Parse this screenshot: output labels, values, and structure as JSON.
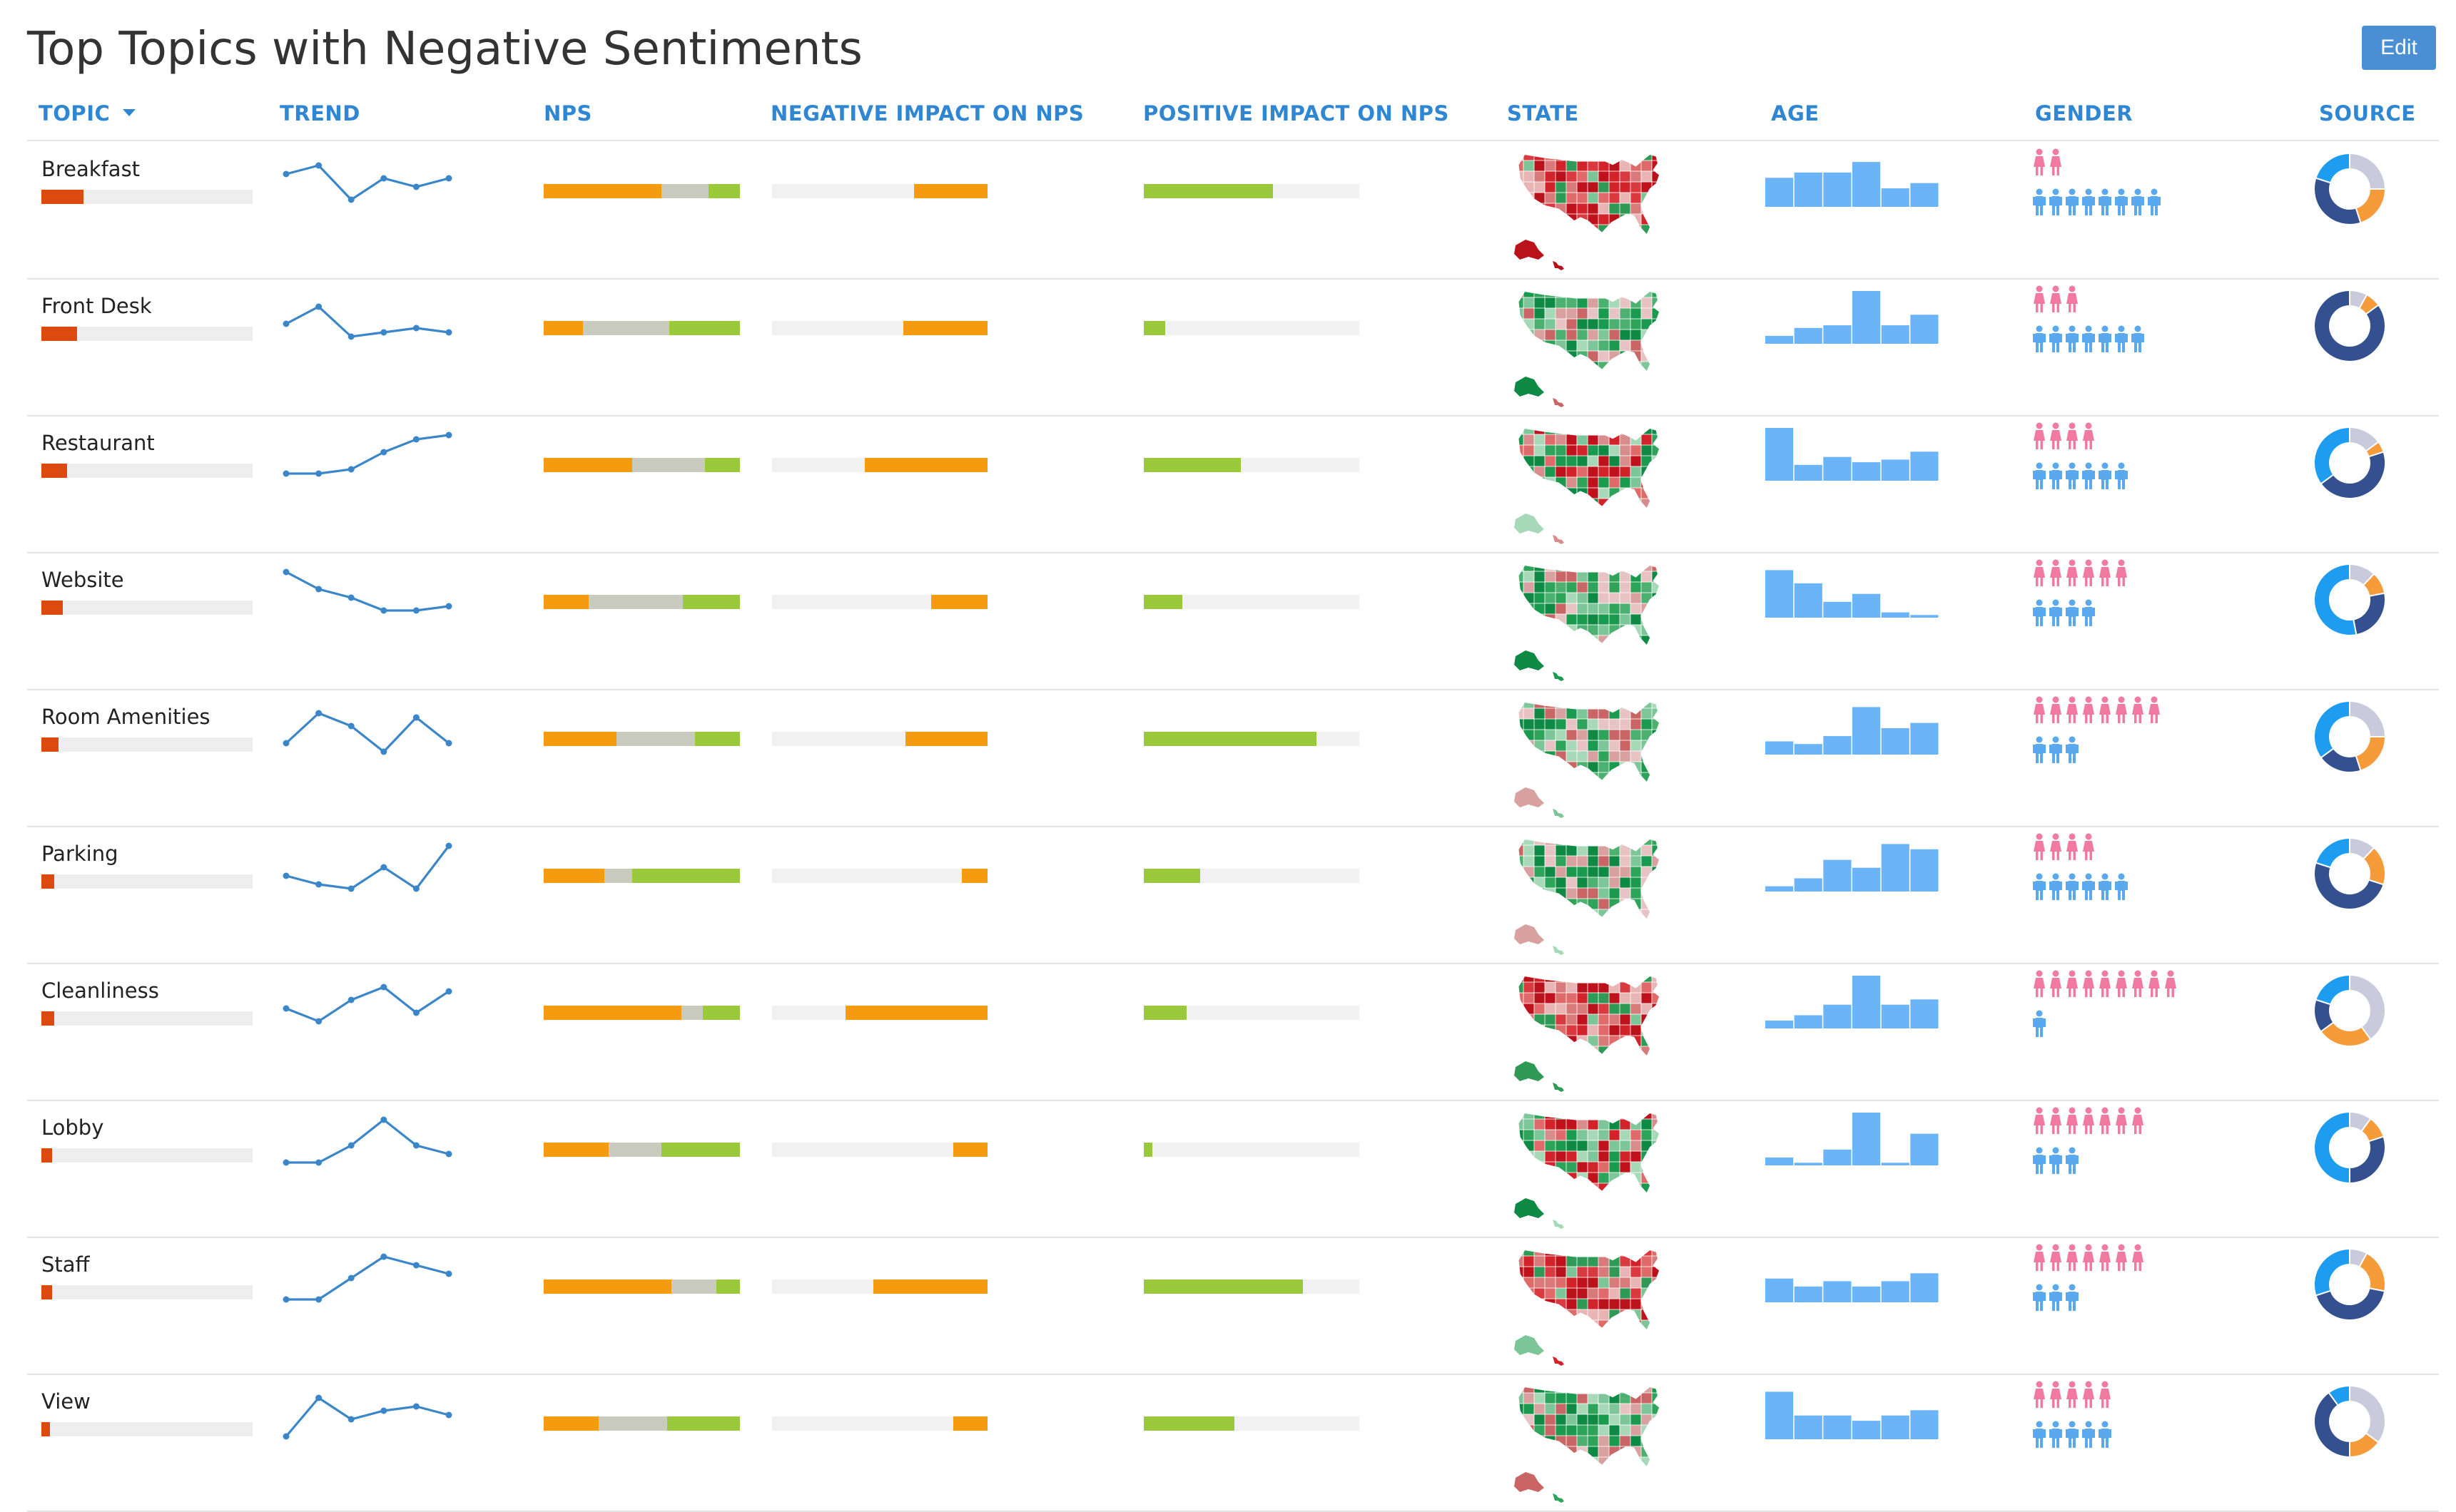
{
  "title": "Top Topics with Negative Sentiments",
  "edit_label": "Edit",
  "columns": {
    "topic": "TOPIC",
    "trend": "TREND",
    "nps": "NPS",
    "negative": "NEGATIVE IMPACT ON NPS",
    "positive": "POSITIVE IMPACT ON NPS",
    "state": "STATE",
    "age": "AGE",
    "gender": "GENDER",
    "source": "SOURCE"
  },
  "icons": {
    "sort": "sort-down-icon",
    "female": "female-person-icon",
    "male": "male-person-icon"
  },
  "colors": {
    "topic_bar": "#dd4a0f",
    "nps_detractor": "#f59b10",
    "nps_passive": "#c9cbbe",
    "nps_promoter": "#9ac93b",
    "trend_line": "#3a86c8",
    "age_bar": "#6ab4f7",
    "female": "#f07aa0",
    "male": "#5aa9ef",
    "source_palette": [
      "#c9cbdc",
      "#f59b3a",
      "#34508f",
      "#1e9cf0"
    ]
  },
  "rows": [
    {
      "topic": "Breakfast",
      "volume": 0.2,
      "trend": [
        0.7,
        0.9,
        0.1,
        0.6,
        0.4,
        0.6
      ],
      "nps": [
        0.6,
        0.24,
        0.16
      ],
      "neg": 0.34,
      "pos": 0.6,
      "state": "red",
      "age": [
        0.55,
        0.65,
        0.65,
        0.85,
        0.35,
        0.45
      ],
      "female": 2,
      "male": 8,
      "source": [
        0.25,
        0.2,
        0.35,
        0.2
      ]
    },
    {
      "topic": "Front Desk",
      "volume": 0.17,
      "trend": [
        0.4,
        0.8,
        0.1,
        0.2,
        0.3,
        0.2
      ],
      "nps": [
        0.2,
        0.44,
        0.36
      ],
      "neg": 0.39,
      "pos": 0.1,
      "state": "green",
      "age": [
        0.15,
        0.3,
        0.35,
        1.0,
        0.35,
        0.55
      ],
      "female": 3,
      "male": 7,
      "source": [
        0.08,
        0.07,
        0.85,
        0.0
      ]
    },
    {
      "topic": "Restaurant",
      "volume": 0.12,
      "trend": [
        0.1,
        0.1,
        0.2,
        0.6,
        0.9,
        1.0
      ],
      "nps": [
        0.45,
        0.37,
        0.18
      ],
      "neg": 0.57,
      "pos": 0.45,
      "state": "mixred",
      "age": [
        1.0,
        0.3,
        0.45,
        0.35,
        0.4,
        0.55
      ],
      "female": 4,
      "male": 6,
      "source": [
        0.15,
        0.05,
        0.45,
        0.35
      ]
    },
    {
      "topic": "Website",
      "volume": 0.1,
      "trend": [
        1.0,
        0.6,
        0.4,
        0.1,
        0.1,
        0.2
      ],
      "nps": [
        0.23,
        0.48,
        0.29
      ],
      "neg": 0.26,
      "pos": 0.18,
      "state": "green",
      "age": [
        0.9,
        0.65,
        0.3,
        0.45,
        0.1,
        0.05
      ],
      "female": 6,
      "male": 4,
      "source": [
        0.12,
        0.1,
        0.25,
        0.53
      ]
    },
    {
      "topic": "Room Amenities",
      "volume": 0.08,
      "trend": [
        0.2,
        0.9,
        0.6,
        0.0,
        0.8,
        0.2
      ],
      "nps": [
        0.37,
        0.4,
        0.23
      ],
      "neg": 0.38,
      "pos": 0.8,
      "state": "green",
      "age": [
        0.25,
        0.2,
        0.35,
        0.9,
        0.5,
        0.6
      ],
      "female": 8,
      "male": 3,
      "source": [
        0.25,
        0.2,
        0.2,
        0.35
      ]
    },
    {
      "topic": "Parking",
      "volume": 0.06,
      "trend": [
        0.3,
        0.1,
        0.0,
        0.5,
        0.0,
        1.0
      ],
      "nps": [
        0.31,
        0.14,
        0.55
      ],
      "neg": 0.12,
      "pos": 0.26,
      "state": "green",
      "age": [
        0.1,
        0.25,
        0.6,
        0.45,
        0.9,
        0.8
      ],
      "female": 4,
      "male": 6,
      "source": [
        0.12,
        0.18,
        0.5,
        0.2
      ]
    },
    {
      "topic": "Cleanliness",
      "volume": 0.06,
      "trend": [
        0.4,
        0.1,
        0.6,
        0.9,
        0.3,
        0.8
      ],
      "nps": [
        0.7,
        0.11,
        0.19
      ],
      "neg": 0.66,
      "pos": 0.2,
      "state": "red",
      "age": [
        0.15,
        0.25,
        0.45,
        1.0,
        0.45,
        0.55
      ],
      "female": 9,
      "male": 1,
      "source": [
        0.4,
        0.25,
        0.15,
        0.2
      ]
    },
    {
      "topic": "Lobby",
      "volume": 0.05,
      "trend": [
        0.0,
        0.0,
        0.4,
        1.0,
        0.4,
        0.2
      ],
      "nps": [
        0.33,
        0.27,
        0.4
      ],
      "neg": 0.16,
      "pos": 0.04,
      "state": "mixgreen",
      "age": [
        0.15,
        0.05,
        0.3,
        1.0,
        0.05,
        0.6
      ],
      "female": 7,
      "male": 3,
      "source": [
        0.1,
        0.1,
        0.3,
        0.5
      ]
    },
    {
      "topic": "Staff",
      "volume": 0.05,
      "trend": [
        0.0,
        0.0,
        0.5,
        1.0,
        0.8,
        0.6
      ],
      "nps": [
        0.65,
        0.23,
        0.12
      ],
      "neg": 0.53,
      "pos": 0.74,
      "state": "red",
      "age": [
        0.45,
        0.3,
        0.4,
        0.3,
        0.4,
        0.55
      ],
      "female": 7,
      "male": 3,
      "source": [
        0.08,
        0.2,
        0.42,
        0.3
      ]
    },
    {
      "topic": "View",
      "volume": 0.04,
      "trend": [
        0.0,
        0.9,
        0.4,
        0.6,
        0.7,
        0.5
      ],
      "nps": [
        0.28,
        0.35,
        0.37
      ],
      "neg": 0.16,
      "pos": 0.42,
      "state": "green",
      "age": [
        0.9,
        0.45,
        0.45,
        0.35,
        0.45,
        0.55
      ],
      "female": 5,
      "male": 5,
      "source": [
        0.35,
        0.15,
        0.4,
        0.1
      ]
    }
  ]
}
